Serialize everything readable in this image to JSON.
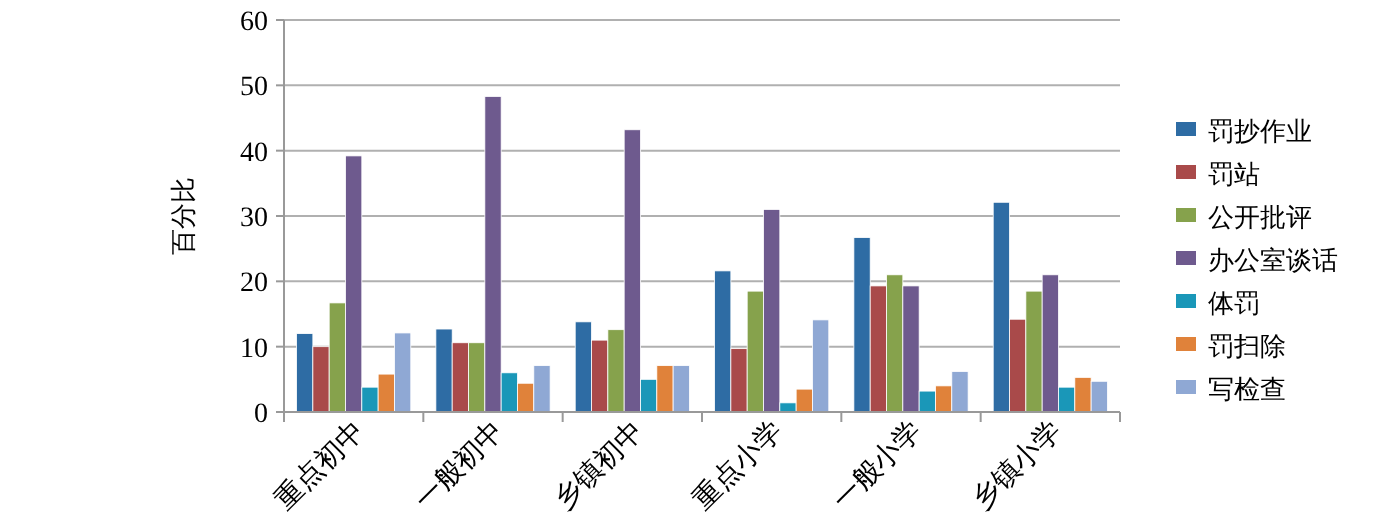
{
  "chart_data": {
    "type": "bar",
    "ylabel": "百分比",
    "categories": [
      "重点初中",
      "一般初中",
      "乡镇初中",
      "重点小学",
      "一般小学",
      "乡镇小学"
    ],
    "series": [
      {
        "name": "罚抄作业",
        "color": "#2e6ca4",
        "values": [
          12,
          12.7,
          13.8,
          21.6,
          26.7,
          32.1
        ]
      },
      {
        "name": "罚站",
        "color": "#a94a4a",
        "values": [
          10,
          10.6,
          11,
          9.7,
          19.3,
          14.2
        ]
      },
      {
        "name": "公开批评",
        "color": "#86a24c",
        "values": [
          16.7,
          10.6,
          12.6,
          18.5,
          21,
          18.5
        ]
      },
      {
        "name": "办公室谈话",
        "color": "#6e5a8e",
        "values": [
          39.2,
          48.3,
          43.2,
          31,
          19.3,
          21
        ]
      },
      {
        "name": "体罚",
        "color": "#1a97b8",
        "values": [
          3.8,
          6,
          5,
          1.4,
          3.2,
          3.8
        ]
      },
      {
        "name": "罚扫除",
        "color": "#e0823a",
        "values": [
          5.8,
          4.4,
          7.1,
          3.5,
          4,
          5.3
        ]
      },
      {
        "name": "写检查",
        "color": "#8fa8d4",
        "values": [
          12.1,
          7.1,
          7.1,
          14.1,
          6.2,
          4.7
        ]
      }
    ],
    "ylim": [
      0,
      60
    ],
    "yticks": [
      0,
      10,
      20,
      30,
      40,
      50,
      60
    ],
    "grid": "y",
    "legend": "right"
  }
}
